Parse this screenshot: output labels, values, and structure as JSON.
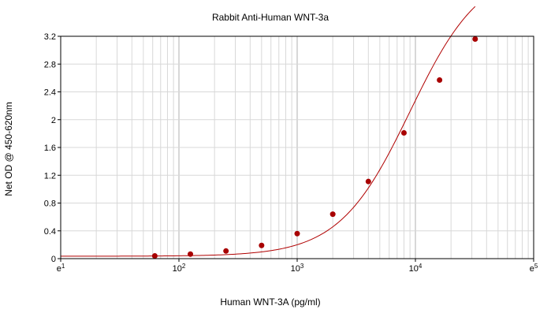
{
  "chart_data": {
    "type": "scatter",
    "title": "Rabbit Anti-Human WNT-3a",
    "xlabel": "Human WNT-3A (pg/ml)",
    "ylabel": "Net OD @ 450-620nm",
    "xscale": "log",
    "xlim": [
      10,
      100000
    ],
    "ylim": [
      0,
      3.2
    ],
    "grid": true,
    "x_ticks": [
      {
        "base": "e",
        "exp": "1"
      },
      {
        "base": "10",
        "exp": "2"
      },
      {
        "base": "10",
        "exp": "3"
      },
      {
        "base": "10",
        "exp": "4"
      },
      {
        "base": "e",
        "exp": "5"
      }
    ],
    "y_ticks": [
      "0",
      "0.4",
      "0.8",
      "1.2",
      "1.6",
      "2",
      "2.4",
      "2.8",
      "3.2"
    ],
    "series": [
      {
        "color": "#a80000",
        "points": [
          {
            "x": 62.5,
            "y": 0.04
          },
          {
            "x": 125,
            "y": 0.065
          },
          {
            "x": 250,
            "y": 0.11
          },
          {
            "x": 500,
            "y": 0.19
          },
          {
            "x": 1000,
            "y": 0.36
          },
          {
            "x": 2000,
            "y": 0.64
          },
          {
            "x": 4000,
            "y": 1.11
          },
          {
            "x": 8000,
            "y": 1.81
          },
          {
            "x": 16000,
            "y": 2.57
          },
          {
            "x": 32000,
            "y": 3.16
          }
        ],
        "fit_curve": true
      }
    ]
  }
}
